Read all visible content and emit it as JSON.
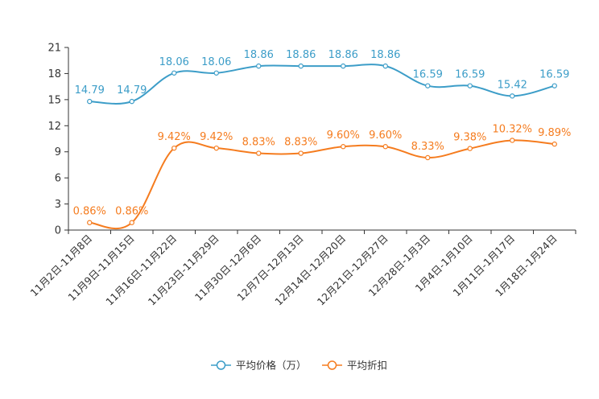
{
  "chart_data": {
    "type": "line",
    "title": "",
    "xlabel": "",
    "ylabel": "",
    "ylim": [
      0,
      21
    ],
    "yticks": [
      0,
      3,
      6,
      9,
      12,
      15,
      18,
      21
    ],
    "categories": [
      "11月2日-11月8日",
      "11月9日-11月15日",
      "11月16日-11月22日",
      "11月23日-11月29日",
      "11月30日-12月6日",
      "12月7日-12月13日",
      "12月14日-12月20日",
      "12月21日-12月27日",
      "12月28日-1月3日",
      "1月4日-1月10日",
      "1月11日-1月17日",
      "1月18日-1月24日"
    ],
    "series": [
      {
        "name": "平均价格（万）",
        "color": "#3c9dc8",
        "values": [
          14.79,
          14.79,
          18.06,
          18.06,
          18.86,
          18.86,
          18.86,
          18.86,
          16.59,
          16.59,
          15.42,
          16.59
        ],
        "labels": [
          "14.79",
          "14.79",
          "18.06",
          "18.06",
          "18.86",
          "18.86",
          "18.86",
          "18.86",
          "16.59",
          "16.59",
          "15.42",
          "16.59"
        ]
      },
      {
        "name": "平均折扣",
        "color": "#f57c1f",
        "values": [
          0.86,
          0.86,
          9.42,
          9.42,
          8.83,
          8.83,
          9.6,
          9.6,
          8.33,
          9.38,
          10.32,
          9.89
        ],
        "labels": [
          "0.86%",
          "0.86%",
          "9.42%",
          "9.42%",
          "8.83%",
          "8.83%",
          "9.60%",
          "9.60%",
          "8.33%",
          "9.38%",
          "10.32%",
          "9.89%"
        ]
      }
    ],
    "legend_position": "bottom-center",
    "grid": false
  }
}
